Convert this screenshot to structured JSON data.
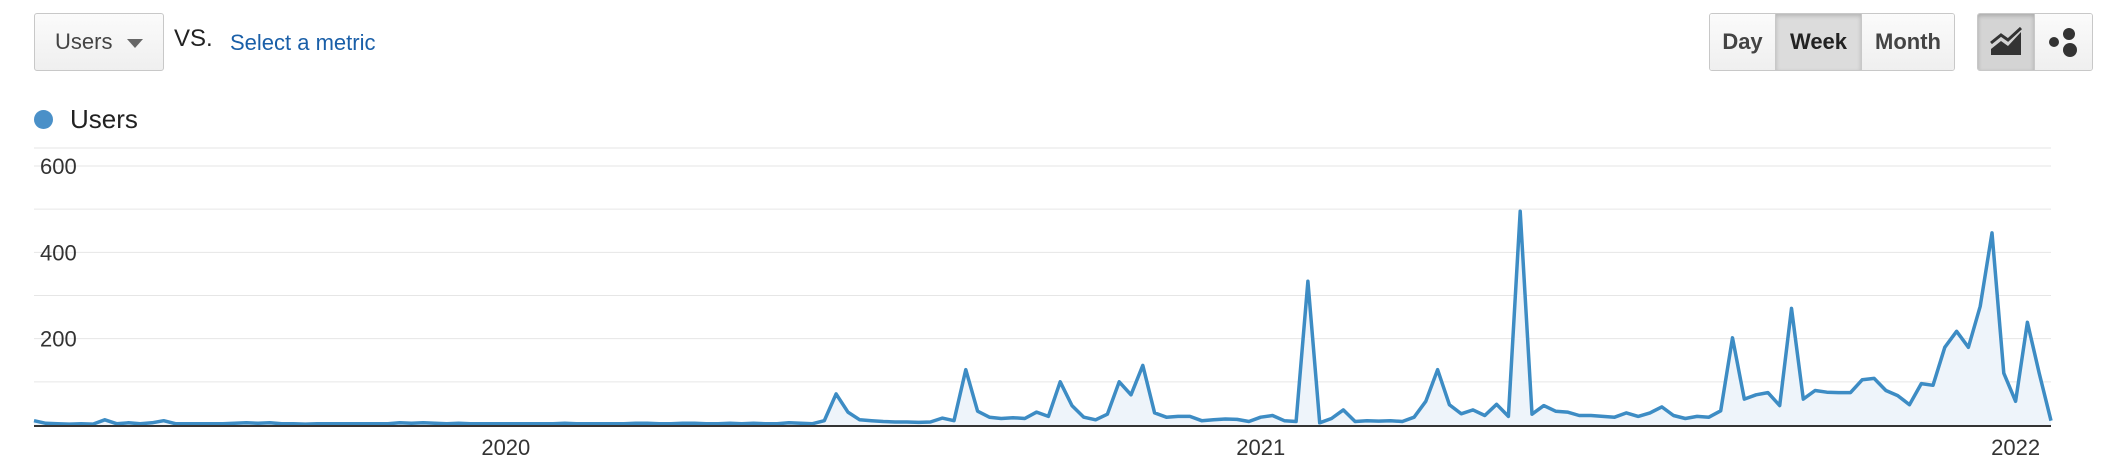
{
  "controls": {
    "primary_metric": "Users",
    "vs_label": "VS.",
    "select_metric_link": "Select a metric",
    "granularity": [
      {
        "label": "Day",
        "active": false
      },
      {
        "label": "Week",
        "active": true
      },
      {
        "label": "Month",
        "active": false
      }
    ],
    "chart_type_buttons": [
      {
        "icon": "line-chart-icon",
        "active": true
      },
      {
        "icon": "motion-chart-icon",
        "active": false
      }
    ]
  },
  "legend": {
    "label": "Users",
    "color": "#4a90c8"
  },
  "colors": {
    "line": "#3d8cc4",
    "fill": "#eef4fa",
    "grid": "#e6e6e6"
  },
  "chart_data": {
    "type": "area",
    "series": [
      {
        "name": "Users",
        "values": [
          10,
          4,
          3,
          2,
          3,
          2,
          12,
          3,
          5,
          3,
          5,
          10,
          3,
          3,
          3,
          3,
          3,
          4,
          5,
          4,
          5,
          3,
          3,
          2,
          3,
          3,
          3,
          3,
          3,
          3,
          3,
          5,
          4,
          5,
          4,
          3,
          4,
          3,
          3,
          3,
          3,
          3,
          3,
          3,
          3,
          4,
          3,
          3,
          3,
          3,
          3,
          4,
          4,
          3,
          3,
          4,
          4,
          3,
          3,
          4,
          3,
          4,
          3,
          3,
          5,
          4,
          3,
          10,
          72,
          30,
          12,
          10,
          8,
          7,
          7,
          6,
          7,
          16,
          10,
          128,
          32,
          18,
          15,
          17,
          15,
          30,
          20,
          100,
          45,
          18,
          12,
          25,
          100,
          70,
          138,
          28,
          18,
          20,
          20,
          10,
          12,
          14,
          13,
          8,
          18,
          22,
          10,
          8,
          333,
          5,
          15,
          35,
          8,
          10,
          9,
          10,
          8,
          18,
          55,
          128,
          47,
          26,
          35,
          22,
          48,
          20,
          495,
          25,
          45,
          32,
          30,
          22,
          22,
          20,
          18,
          28,
          20,
          28,
          42,
          22,
          15,
          20,
          18,
          33,
          202,
          60,
          70,
          75,
          45,
          270,
          60,
          80,
          76,
          75,
          75,
          105,
          108,
          80,
          68,
          47,
          96,
          92,
          180,
          217,
          180,
          275,
          445,
          120,
          55,
          238,
          120,
          10
        ]
      }
    ],
    "y_ticks": [
      600,
      400,
      200
    ],
    "ylim": [
      0,
      600
    ],
    "x_tick_labels": [
      {
        "label": "2020",
        "index": 40
      },
      {
        "label": "2021",
        "index": 104
      },
      {
        "label": "2022",
        "index": 168
      }
    ],
    "grid": true
  }
}
